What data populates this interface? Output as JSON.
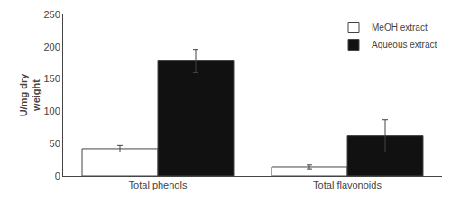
{
  "chart_data": {
    "type": "bar",
    "categories": [
      "Total phenols",
      "Total flavonoids"
    ],
    "series": [
      {
        "name": "MeOH extract",
        "color": "#ffffff",
        "values": [
          42,
          14
        ],
        "errors": [
          5,
          3
        ]
      },
      {
        "name": "Aqueous extract",
        "color": "#111111",
        "values": [
          178,
          62
        ],
        "errors": [
          18,
          25
        ]
      }
    ],
    "ylabel": "U/mg dry\nweight",
    "ylim": [
      0,
      250
    ],
    "yticks": [
      0,
      50,
      100,
      150,
      200,
      250
    ],
    "grid": false,
    "legend": "upper right"
  }
}
